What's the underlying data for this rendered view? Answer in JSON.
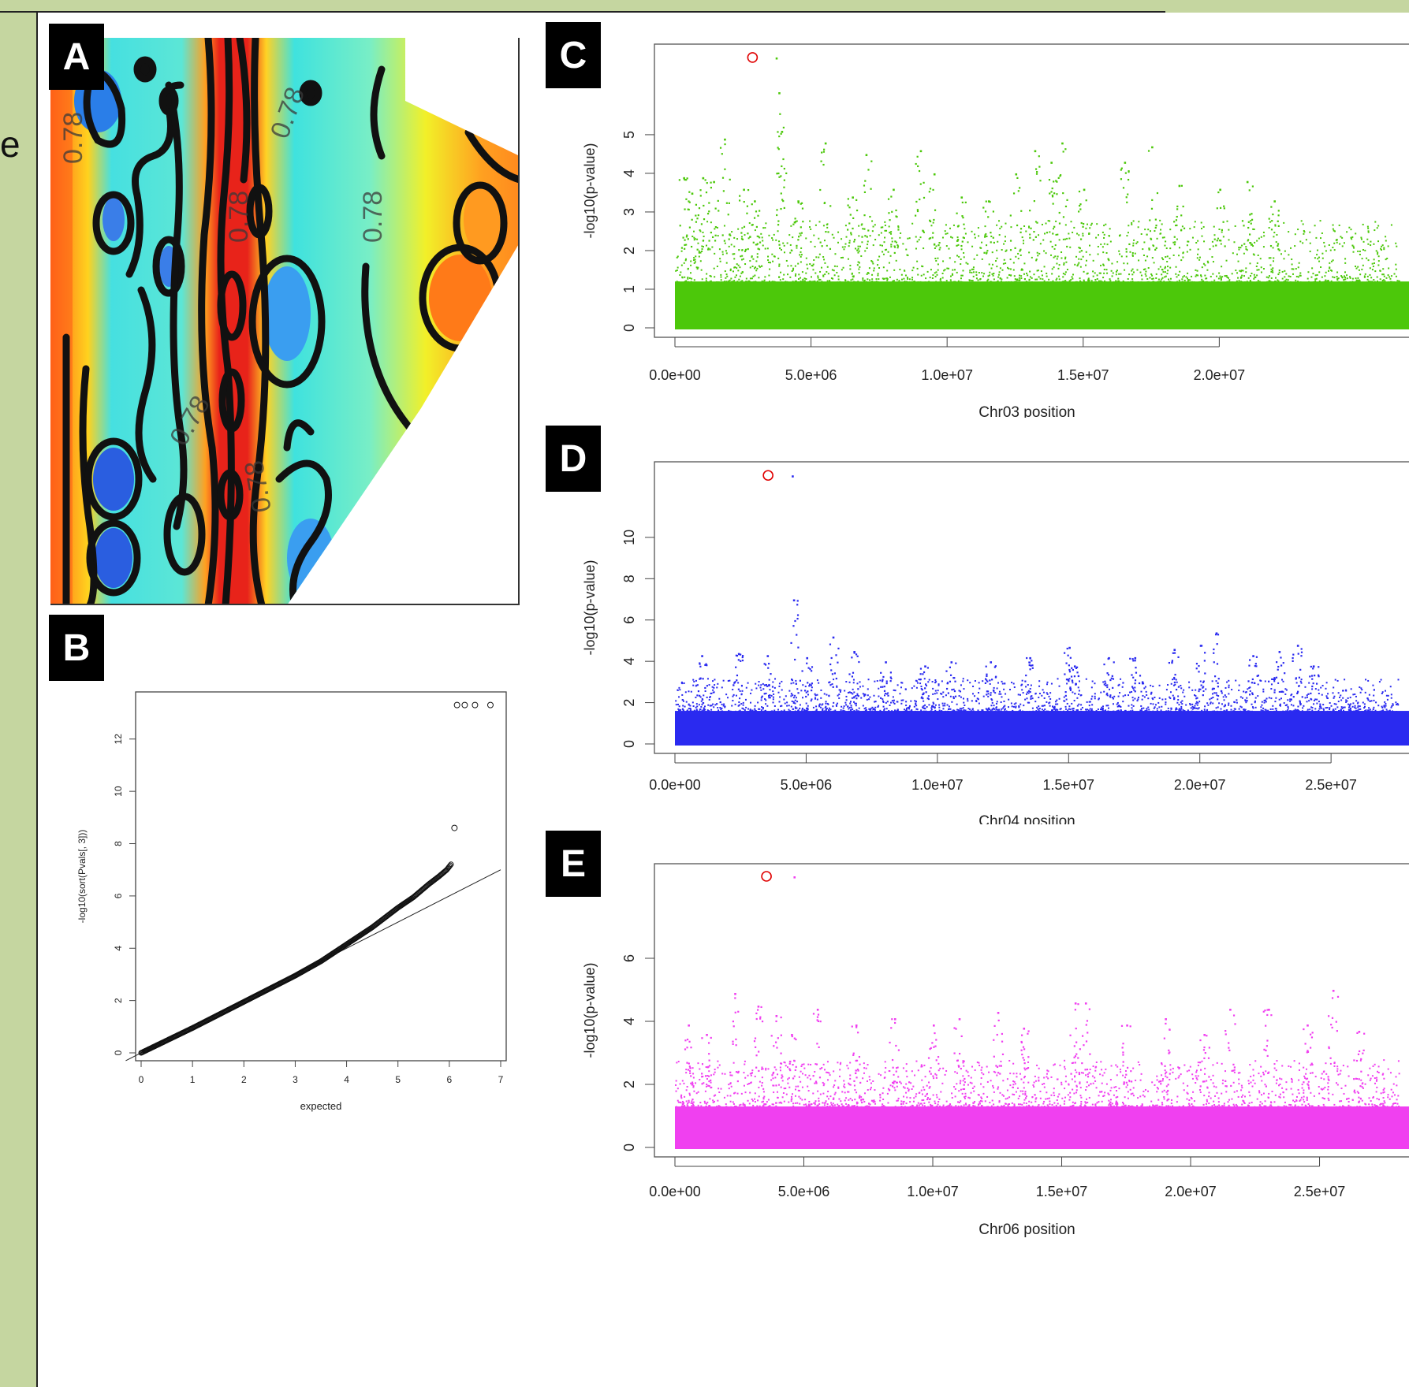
{
  "edge_glyph": "e",
  "panels": {
    "A": {
      "label": "A",
      "contour_labels": [
        "0.78",
        "0.78",
        "0.78",
        "0.78",
        "0.78",
        "0.78"
      ]
    },
    "B": {
      "label": "B"
    },
    "C": {
      "label": "C"
    },
    "D": {
      "label": "D"
    },
    "E": {
      "label": "E"
    }
  },
  "colors": {
    "background": "#c5d6a0",
    "chr03": "#4cc80a",
    "chr04": "#2a2af0",
    "chr06": "#f040f0",
    "highlight": "#e00000"
  },
  "chart_data": [
    {
      "id": "B",
      "type": "scatter",
      "xlabel": "expected",
      "ylabel": "-log10(sort(Pvals[, 3]))",
      "xlim": [
        0,
        7
      ],
      "ylim": [
        0,
        13.5
      ],
      "x_ticks": [
        "0",
        "1",
        "2",
        "3",
        "4",
        "5",
        "6",
        "7"
      ],
      "y_ticks": [
        "0",
        "2",
        "4",
        "6",
        "8",
        "10",
        "12"
      ],
      "reference_line": {
        "slope": 1,
        "intercept": 0
      },
      "observed_curve": [
        [
          0,
          0
        ],
        [
          1,
          0.95
        ],
        [
          2,
          1.95
        ],
        [
          3,
          2.95
        ],
        [
          3.5,
          3.5
        ],
        [
          4,
          4.15
        ],
        [
          4.5,
          4.8
        ],
        [
          5,
          5.55
        ],
        [
          5.3,
          5.95
        ],
        [
          5.6,
          6.45
        ],
        [
          5.8,
          6.75
        ],
        [
          5.95,
          7.0
        ],
        [
          6.05,
          7.25
        ]
      ],
      "outliers": [
        [
          6.1,
          8.6
        ],
        [
          6.15,
          13.3
        ],
        [
          6.3,
          13.3
        ],
        [
          6.5,
          13.3
        ],
        [
          6.8,
          13.3
        ]
      ]
    },
    {
      "id": "C",
      "type": "scatter",
      "xlabel": "Chr03 position",
      "ylabel": "-log10(p-value)",
      "xlim": [
        0,
        27000000
      ],
      "ylim": [
        0,
        7.1
      ],
      "x_ticks": [
        "0.0e+00",
        "5.0e+06",
        "1.0e+07",
        "1.5e+07",
        "2.0e+07"
      ],
      "y_ticks": [
        "0",
        "1",
        "2",
        "3",
        "4",
        "5"
      ],
      "baseline_max": 1.2,
      "band_max": 2.8,
      "peaks": [
        [
          300000,
          3.9
        ],
        [
          600000,
          3.5
        ],
        [
          1000000,
          3.9
        ],
        [
          1400000,
          3.8
        ],
        [
          1800000,
          4.9
        ],
        [
          2500000,
          3.6
        ],
        [
          2900000,
          3.3
        ],
        [
          3800000,
          6.1
        ],
        [
          3900000,
          5.1
        ],
        [
          4500000,
          3.3
        ],
        [
          5500000,
          4.8
        ],
        [
          6500000,
          3.4
        ],
        [
          7000000,
          4.5
        ],
        [
          8000000,
          3.6
        ],
        [
          9000000,
          4.6
        ],
        [
          9500000,
          4.0
        ],
        [
          10500000,
          3.4
        ],
        [
          11500000,
          3.3
        ],
        [
          12500000,
          4.0
        ],
        [
          13200000,
          4.6
        ],
        [
          13800000,
          4.3
        ],
        [
          14200000,
          4.8
        ],
        [
          15000000,
          3.6
        ],
        [
          16500000,
          4.3
        ],
        [
          17500000,
          4.7
        ],
        [
          18500000,
          3.7
        ],
        [
          20000000,
          3.6
        ],
        [
          21000000,
          3.8
        ],
        [
          22000000,
          3.3
        ]
      ],
      "top_hits": [
        {
          "x": 3700000,
          "y": 7.0
        }
      ],
      "highlight": {
        "x": 2850000,
        "y": 7.0
      }
    },
    {
      "id": "D",
      "type": "scatter",
      "xlabel": "Chr04 position",
      "ylabel": "-log10(p-value)",
      "xlim": [
        0,
        28000000
      ],
      "ylim": [
        0,
        13.2
      ],
      "x_ticks": [
        "0.0e+00",
        "5.0e+06",
        "1.0e+07",
        "1.5e+07",
        "2.0e+07",
        "2.5e+07"
      ],
      "y_ticks": [
        "0",
        "2",
        "4",
        "6",
        "8",
        "10"
      ],
      "baseline_max": 1.6,
      "band_max": 3.2,
      "peaks": [
        [
          1000000,
          4.3
        ],
        [
          2400000,
          4.4
        ],
        [
          3500000,
          4.3
        ],
        [
          4500000,
          7.0
        ],
        [
          5000000,
          4.2
        ],
        [
          6000000,
          5.2
        ],
        [
          6800000,
          4.5
        ],
        [
          8000000,
          4.0
        ],
        [
          9500000,
          3.8
        ],
        [
          10500000,
          4.0
        ],
        [
          12000000,
          4.0
        ],
        [
          13500000,
          4.2
        ],
        [
          15000000,
          4.7
        ],
        [
          15200000,
          3.8
        ],
        [
          16500000,
          4.2
        ],
        [
          17500000,
          4.2
        ],
        [
          19000000,
          4.6
        ],
        [
          20000000,
          4.8
        ],
        [
          20600000,
          5.4
        ],
        [
          22000000,
          4.3
        ],
        [
          23000000,
          4.5
        ],
        [
          23700000,
          4.8
        ],
        [
          24300000,
          3.8
        ]
      ],
      "top_hits": [
        {
          "x": 4450000,
          "y": 13.0
        }
      ],
      "highlight": {
        "x": 3550000,
        "y": 13.0
      }
    },
    {
      "id": "E",
      "type": "scatter",
      "xlabel": "Chr06 position",
      "ylabel": "-log10(p-value)",
      "xlim": [
        0,
        28500000
      ],
      "ylim": [
        0,
        8.7
      ],
      "x_ticks": [
        "0.0e+00",
        "5.0e+06",
        "1.0e+07",
        "1.5e+07",
        "2.0e+07",
        "2.5e+07"
      ],
      "y_ticks": [
        "0",
        "2",
        "4",
        "6"
      ],
      "baseline_max": 1.3,
      "band_max": 2.8,
      "peaks": [
        [
          500000,
          3.9
        ],
        [
          1200000,
          3.6
        ],
        [
          2300000,
          4.9
        ],
        [
          3200000,
          4.5
        ],
        [
          3900000,
          4.2
        ],
        [
          4500000,
          3.6
        ],
        [
          5500000,
          4.4
        ],
        [
          7000000,
          3.9
        ],
        [
          8500000,
          4.1
        ],
        [
          10000000,
          3.9
        ],
        [
          11000000,
          4.1
        ],
        [
          12500000,
          4.3
        ],
        [
          13500000,
          3.8
        ],
        [
          15500000,
          4.6
        ],
        [
          15900000,
          4.6
        ],
        [
          17500000,
          3.9
        ],
        [
          19000000,
          4.1
        ],
        [
          20500000,
          3.6
        ],
        [
          21500000,
          4.4
        ],
        [
          23000000,
          4.4
        ],
        [
          24500000,
          3.9
        ],
        [
          25500000,
          5.0
        ],
        [
          26500000,
          3.7
        ]
      ],
      "top_hits": [
        {
          "x": 4600000,
          "y": 8.6
        }
      ],
      "highlight": {
        "x": 3550000,
        "y": 8.6
      }
    }
  ]
}
